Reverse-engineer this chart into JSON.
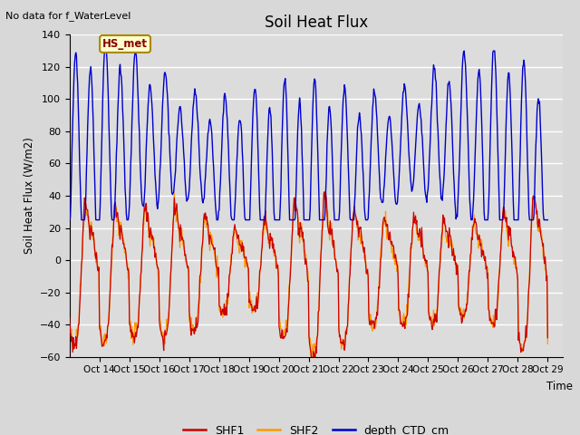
{
  "title": "Soil Heat Flux",
  "ylabel": "Soil Heat Flux (W/m2)",
  "xlabel": "Time",
  "no_data_text": "No data for f_WaterLevel",
  "station_label": "HS_met",
  "ylim": [
    -60,
    140
  ],
  "yticks": [
    -60,
    -40,
    -20,
    0,
    20,
    40,
    60,
    80,
    100,
    120,
    140
  ],
  "xtick_labels": [
    "Oct 14",
    "Oct 15",
    "Oct 16",
    "Oct 17",
    "Oct 18",
    "Oct 19",
    "Oct 20",
    "Oct 21",
    "Oct 22",
    "Oct 23",
    "Oct 24",
    "Oct 25",
    "Oct 26",
    "Oct 27",
    "Oct 28",
    "Oct 29"
  ],
  "background_color": "#dcdcdc",
  "grid_color": "#ffffff",
  "shf1_color": "#cc0000",
  "shf2_color": "#ff9900",
  "depth_color": "#0000cc",
  "fig_facecolor": "#d8d8d8"
}
